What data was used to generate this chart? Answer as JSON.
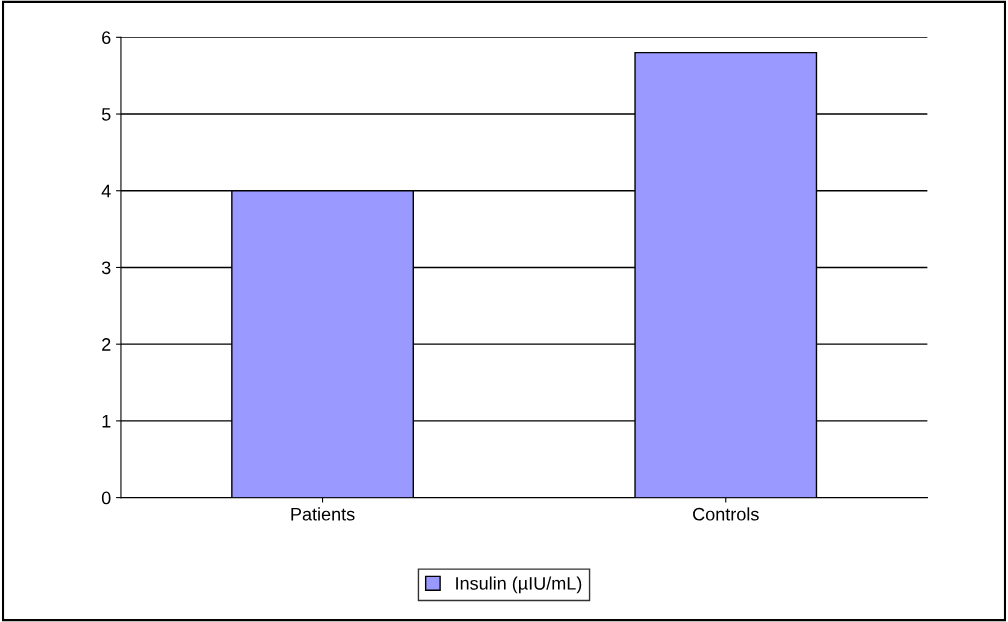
{
  "chart_data": {
    "type": "bar",
    "categories": [
      "Patients",
      "Controls"
    ],
    "series": [
      {
        "name": "Insulin (µIU/mL)",
        "color": "#9999ff",
        "values": [
          4.0,
          5.8
        ]
      }
    ],
    "ylim": [
      0,
      6
    ],
    "yticks": [
      0,
      1,
      2,
      3,
      4,
      5,
      6
    ],
    "grid": "y",
    "legend": "bottom"
  }
}
